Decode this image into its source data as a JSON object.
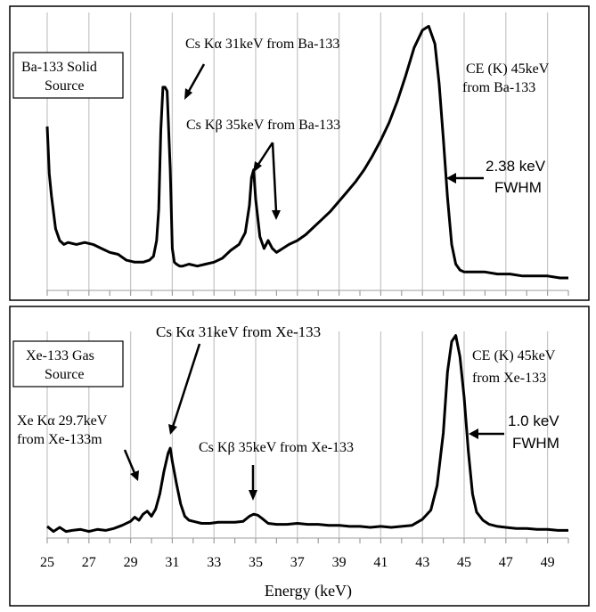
{
  "chart_data": [
    {
      "type": "line",
      "title": "",
      "xlabel": "",
      "ylabel": "",
      "xlim": [
        25,
        50
      ],
      "grid": "vertical",
      "legend_box": [
        "Ba-133 Solid",
        "Source"
      ],
      "series": [
        {
          "x": [
            25.0,
            25.1,
            25.2,
            25.4,
            25.6,
            25.8,
            26.0,
            26.4,
            26.8,
            27.2,
            27.6,
            28.0,
            28.4,
            28.8,
            29.2,
            29.6,
            29.9,
            30.1,
            30.25,
            30.35,
            30.45,
            30.55,
            30.65,
            30.75,
            30.9,
            31.0,
            31.1,
            31.2,
            31.35,
            31.5,
            31.8,
            32.2,
            32.6,
            33.0,
            33.4,
            33.8,
            34.2,
            34.5,
            34.7,
            34.8,
            34.9,
            35.0,
            35.2,
            35.4,
            35.6,
            35.8,
            36.0,
            36.3,
            36.6,
            37.0,
            37.4,
            37.8,
            38.2,
            38.6,
            39.0,
            39.4,
            39.8,
            40.2,
            40.6,
            41.0,
            41.4,
            41.8,
            42.2,
            42.6,
            43.0,
            43.3,
            43.6,
            43.8,
            44.0,
            44.2,
            44.4,
            44.6,
            44.8,
            45.0,
            45.4,
            46.0,
            46.6,
            47.2,
            47.8,
            48.4,
            49.0,
            49.6,
            50.0
          ],
          "y": [
            82,
            58,
            47,
            30,
            24,
            22,
            23,
            22,
            23,
            22,
            20,
            18,
            17,
            14,
            13,
            13,
            14,
            16,
            24,
            40,
            80,
            102,
            102,
            100,
            60,
            20,
            13,
            12,
            11,
            11,
            12,
            11,
            12,
            13,
            15,
            19,
            22,
            28,
            42,
            56,
            60,
            45,
            26,
            20,
            24,
            20,
            18,
            20,
            22,
            24,
            27,
            31,
            35,
            39,
            44,
            49,
            54,
            60,
            67,
            75,
            84,
            95,
            108,
            122,
            131,
            133,
            124,
            104,
            76,
            46,
            22,
            12,
            9,
            8,
            8,
            8,
            7,
            7,
            6,
            6,
            6,
            5,
            5
          ]
        }
      ],
      "annotations": [
        {
          "text": "Cs Kα 31keV from Ba-133",
          "x": 30.9
        },
        {
          "text": "Cs Kβ 35keV from Ba-133",
          "x": 34.9
        },
        {
          "text": "CE (K) 45keV",
          "x": 43.3
        },
        {
          "text": "from Ba-133",
          "x": 43.3
        },
        {
          "text": "2.38 keV",
          "x": 44.2
        },
        {
          "text": "FWHM",
          "x": 44.2
        }
      ]
    },
    {
      "type": "line",
      "title": "",
      "xlabel": "Energy (keV)",
      "ylabel": "",
      "xlim": [
        25,
        50
      ],
      "xticks": [
        "25",
        "27",
        "29",
        "31",
        "33",
        "35",
        "37",
        "39",
        "41",
        "43",
        "45",
        "47",
        "49"
      ],
      "grid": "vertical",
      "legend_box": [
        "Xe-133 Gas",
        "Source"
      ],
      "series": [
        {
          "x": [
            25.0,
            25.3,
            25.6,
            25.9,
            26.2,
            26.6,
            27.0,
            27.4,
            27.8,
            28.2,
            28.6,
            29.0,
            29.2,
            29.4,
            29.6,
            29.8,
            30.0,
            30.2,
            30.4,
            30.6,
            30.8,
            30.9,
            31.0,
            31.2,
            31.4,
            31.6,
            31.8,
            32.0,
            32.4,
            32.8,
            33.2,
            33.6,
            34.0,
            34.4,
            34.7,
            34.9,
            35.1,
            35.3,
            35.6,
            36.0,
            36.5,
            37.0,
            37.5,
            38.0,
            38.5,
            39.0,
            39.5,
            40.0,
            40.5,
            41.0,
            41.5,
            42.0,
            42.5,
            43.0,
            43.4,
            43.7,
            44.0,
            44.2,
            44.4,
            44.6,
            44.8,
            45.0,
            45.2,
            45.4,
            45.6,
            45.9,
            46.2,
            46.6,
            47.0,
            47.5,
            48.0,
            48.5,
            49.0,
            49.5,
            50.0
          ],
          "y": [
            8,
            3,
            7,
            3,
            4,
            5,
            3,
            5,
            4,
            6,
            9,
            13,
            17,
            14,
            20,
            23,
            18,
            25,
            40,
            62,
            80,
            85,
            72,
            50,
            30,
            18,
            14,
            13,
            11,
            11,
            12,
            12,
            12,
            13,
            18,
            20,
            19,
            16,
            11,
            10,
            10,
            11,
            10,
            10,
            9,
            9,
            8,
            8,
            7,
            8,
            7,
            8,
            9,
            15,
            24,
            48,
            100,
            160,
            190,
            196,
            175,
            135,
            82,
            40,
            22,
            14,
            10,
            8,
            7,
            6,
            6,
            5,
            5,
            4,
            4
          ]
        }
      ],
      "annotations": [
        {
          "text": "Cs Kα 31keV from Xe-133",
          "x": 30.9
        },
        {
          "text": "Cs Kβ 35keV from Xe-133",
          "x": 34.9
        },
        {
          "text": "Xe Kα 29.7keV",
          "x": 29.5
        },
        {
          "text": "from Xe-133m",
          "x": 29.5
        },
        {
          "text": "CE (K) 45keV",
          "x": 44.6
        },
        {
          "text": "from Xe-133",
          "x": 44.6
        },
        {
          "text": "1.0 keV",
          "x": 44.8
        },
        {
          "text": "FWHM",
          "x": 44.8
        }
      ]
    }
  ]
}
